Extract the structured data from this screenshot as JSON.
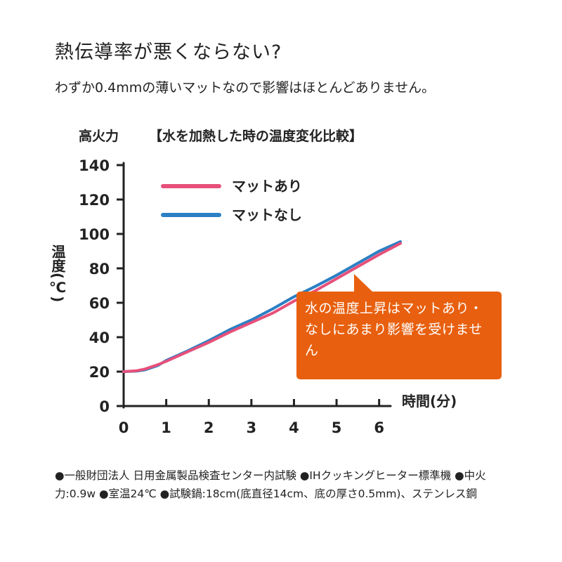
{
  "header": {
    "title": "熱伝導率が悪くならない?",
    "subtitle": "わずか0.4mmの薄いマットなので影響はほとんどありません。"
  },
  "callout": {
    "text": "水の温度上昇はマットあり・なしにあまり影響を受けません",
    "color": "#e8600f"
  },
  "footnote": {
    "items": [
      "●一般財団法人 日用金属製品検査センター内試験",
      "●IHクッキングヒーター標準機",
      "●中火力:0.9w",
      "●室温24℃",
      "●試験鍋:18cm(底直径14cm、底の厚さ0.5mm)、ステンレス鋼"
    ]
  },
  "chart_data": {
    "type": "line",
    "title": "【水を加熱した時の温度変化比較】",
    "power_label": "高火力",
    "xlabel": "時間(分)",
    "ylabel": "温度(℃)",
    "xlim": [
      0,
      6.5
    ],
    "ylim": [
      0,
      140
    ],
    "x_ticks": [
      "0",
      "1",
      "2",
      "3",
      "4",
      "5",
      "6"
    ],
    "y_ticks": [
      "0",
      "20",
      "40",
      "60",
      "80",
      "100",
      "120",
      "140"
    ],
    "grid": false,
    "legend_position": "top-left",
    "series": [
      {
        "name": "マットあり",
        "color": "#e6507a",
        "x": [
          0,
          0.3,
          0.5,
          0.8,
          1.0,
          1.5,
          2.0,
          2.5,
          3.0,
          3.5,
          4.0,
          4.5,
          5.0,
          5.5,
          6.0,
          6.5
        ],
        "y": [
          20,
          20.5,
          21.5,
          24,
          26,
          31.5,
          37,
          43,
          48.5,
          54,
          61,
          67,
          74,
          81,
          88,
          94.5
        ]
      },
      {
        "name": "マットなし",
        "color": "#2b7fc4",
        "x": [
          0,
          0.3,
          0.5,
          0.8,
          1.0,
          1.5,
          2.0,
          2.5,
          3.0,
          3.5,
          4.0,
          4.5,
          5.0,
          5.5,
          6.0,
          6.5
        ],
        "y": [
          20,
          20.3,
          21,
          23.5,
          26.5,
          32,
          38,
          44.5,
          50,
          56.5,
          63.5,
          69.5,
          76,
          83,
          90,
          95.5
        ]
      }
    ]
  }
}
